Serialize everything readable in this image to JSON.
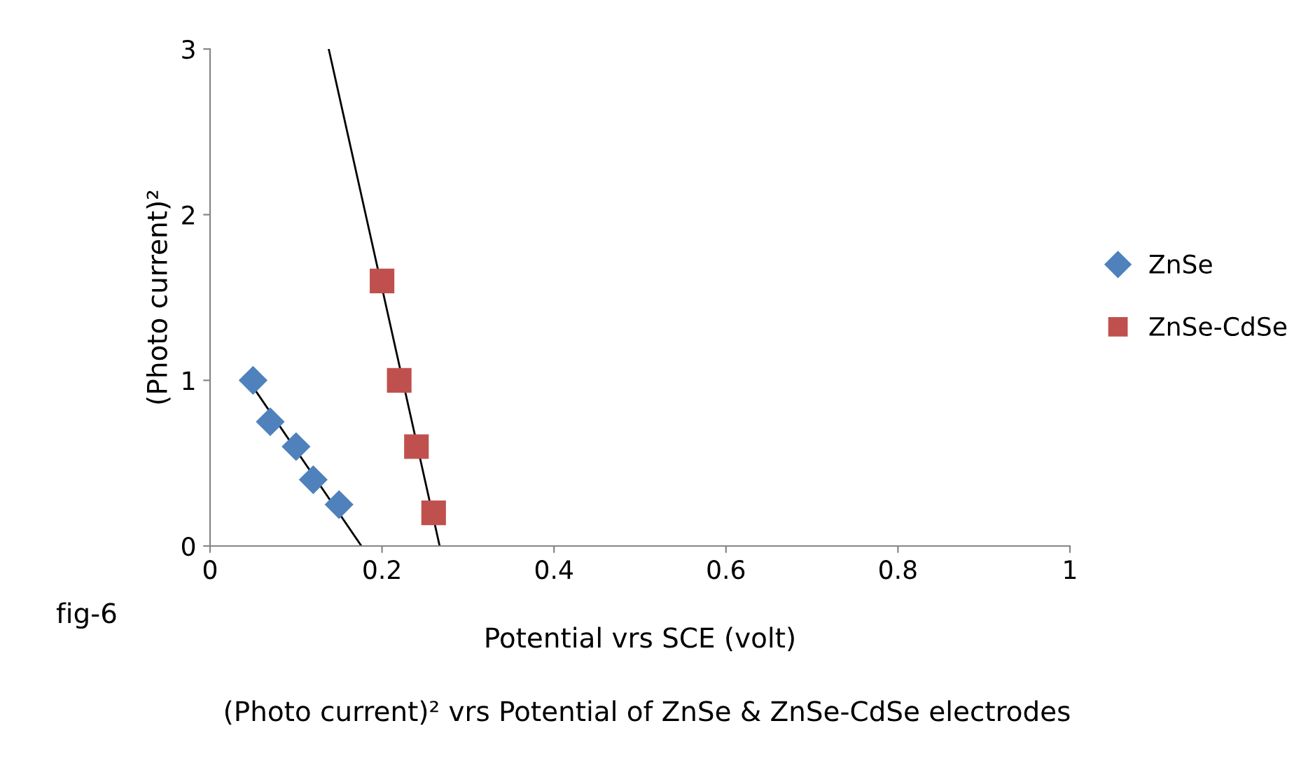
{
  "chart_data": {
    "type": "scatter",
    "title": "(Photo current)² vrs Potential of ZnSe & ZnSe-CdSe electrodes",
    "xlabel": "Potential vrs SCE (volt)",
    "ylabel": "(Photo current)²",
    "annotations": [
      "fig-6"
    ],
    "series": [
      {
        "name": "ZnSe",
        "color": "#4f81bd",
        "marker": "diamond",
        "x": [
          0.05,
          0.07,
          0.1,
          0.12,
          0.15
        ],
        "values": [
          1.0,
          0.75,
          0.6,
          0.4,
          0.25
        ]
      },
      {
        "name": "ZnSe-CdSe",
        "color": "#c0504d",
        "marker": "square",
        "x": [
          0.2,
          0.22,
          0.24,
          0.26
        ],
        "values": [
          1.6,
          1.0,
          0.6,
          0.2
        ]
      },
      {
        "type": "line",
        "color": "#000000",
        "marker": "none",
        "x": [
          0.05,
          0.176
        ],
        "values": [
          0.96,
          0
        ]
      },
      {
        "type": "line",
        "color": "#000000",
        "marker": "none",
        "x": [
          0.138,
          0.267
        ],
        "values": [
          3,
          0
        ]
      }
    ],
    "xlim": [
      0,
      1
    ],
    "ylim": [
      0,
      3
    ],
    "xticks": [
      0,
      0.2,
      0.4,
      0.6,
      0.8,
      1
    ],
    "yticks": [
      0,
      1,
      2,
      3
    ],
    "grid": false,
    "legend": "right"
  }
}
